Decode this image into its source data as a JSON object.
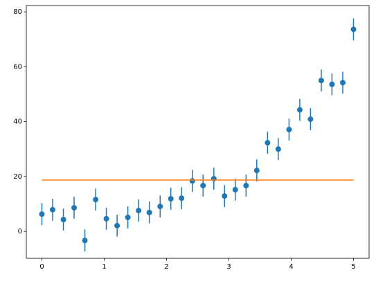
{
  "chart_data": {
    "type": "errorbar",
    "xlim": [
      -0.25,
      5.25
    ],
    "ylim": [
      -9.8,
      82.3
    ],
    "xticks": [
      0,
      1,
      2,
      3,
      4,
      5
    ],
    "yticks": [
      0,
      20,
      40,
      60,
      80
    ],
    "series": [
      {
        "type": "errorbar",
        "color": "#1f77b4",
        "x": [
          0,
          0.172,
          0.345,
          0.517,
          0.69,
          0.862,
          1.034,
          1.207,
          1.379,
          1.552,
          1.724,
          1.897,
          2.069,
          2.241,
          2.414,
          2.586,
          2.759,
          2.931,
          3.103,
          3.276,
          3.448,
          3.621,
          3.793,
          3.966,
          4.138,
          4.31,
          4.483,
          4.655,
          4.828,
          5
        ],
        "values": [
          6.3,
          7.9,
          4.3,
          8.6,
          -3.3,
          11.6,
          4.6,
          2.1,
          5.1,
          7.6,
          6.9,
          9.1,
          11.9,
          12.1,
          18.4,
          16.7,
          19.2,
          12.9,
          15.2,
          16.7,
          22.2,
          32.3,
          30.0,
          37.1,
          44.3,
          40.9,
          55.0,
          53.6,
          54.2,
          73.6
        ],
        "errors": [
          4,
          4,
          4,
          4,
          4,
          4,
          4,
          4,
          4,
          4,
          4,
          4,
          4,
          4,
          4,
          4,
          4,
          4,
          4,
          4,
          4,
          4,
          4,
          4,
          4,
          4,
          4,
          4,
          4,
          4
        ]
      },
      {
        "type": "line",
        "color": "#ff7f0e",
        "x": [
          0,
          5
        ],
        "values": [
          18.7,
          18.7
        ]
      }
    ]
  }
}
